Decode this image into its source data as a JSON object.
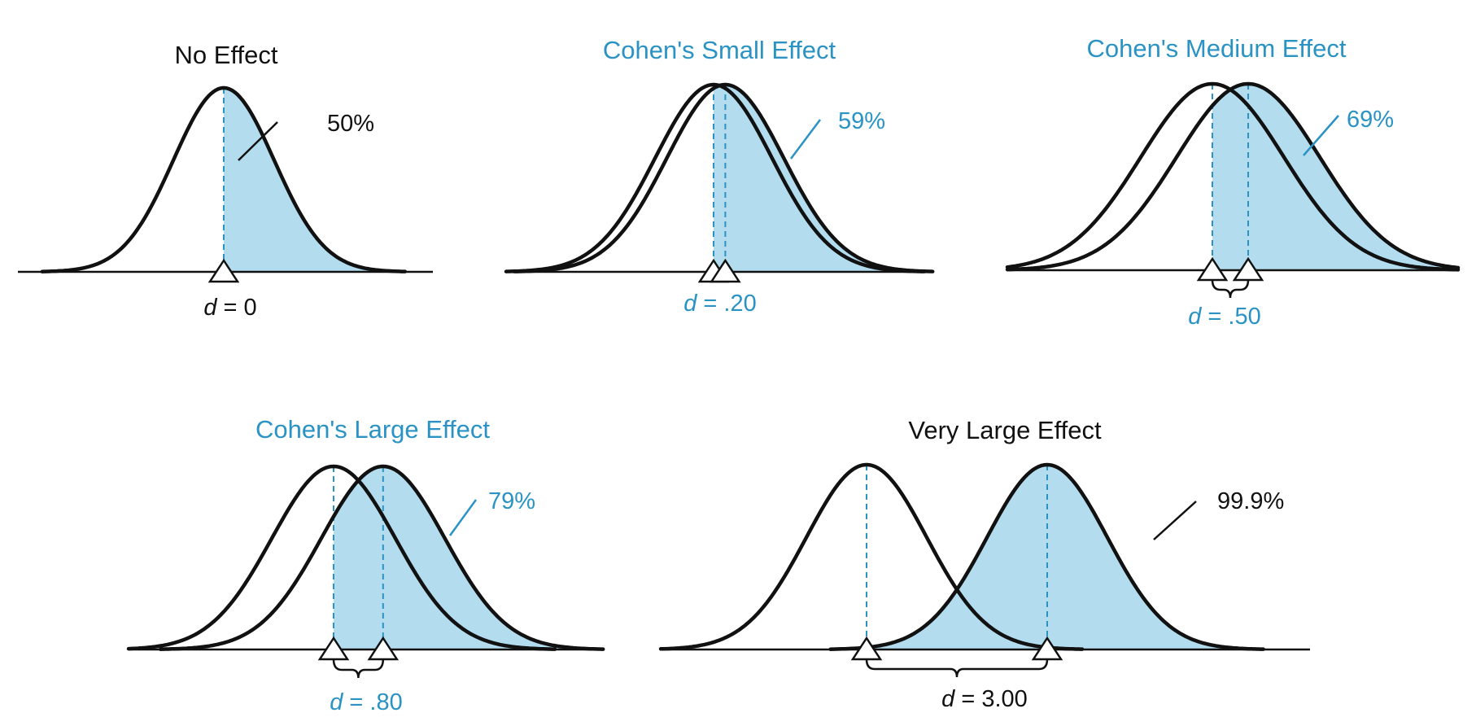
{
  "colors": {
    "shade": "#b3dcef",
    "accent": "#2a93c4",
    "ink": "#111111",
    "dash": "#2a93c4"
  },
  "panels": [
    {
      "title": "No Effect",
      "title_color": "ink",
      "percent": "50%",
      "percent_color": "ink",
      "d_symbol": "d",
      "d_value": "= 0",
      "d_color": "ink",
      "d": 0
    },
    {
      "title": "Cohen's Small Effect",
      "title_color": "accent",
      "percent": "59%",
      "percent_color": "accent",
      "d_symbol": "d",
      "d_value": "= .20",
      "d_color": "accent",
      "d": 0.2
    },
    {
      "title": "Cohen's Medium Effect",
      "title_color": "accent",
      "percent": "69%",
      "percent_color": "accent",
      "d_symbol": "d",
      "d_value": "= .50",
      "d_color": "accent",
      "d": 0.5
    },
    {
      "title": "Cohen's Large Effect",
      "title_color": "accent",
      "percent": "79%",
      "percent_color": "accent",
      "d_symbol": "d",
      "d_value": "= .80",
      "d_color": "accent",
      "d": 0.8
    },
    {
      "title": "Very Large Effect",
      "title_color": "ink",
      "percent": "99.9%",
      "percent_color": "ink",
      "d_symbol": "d",
      "d_value": "= 3.00",
      "d_color": "ink",
      "d": 3.0
    }
  ]
}
